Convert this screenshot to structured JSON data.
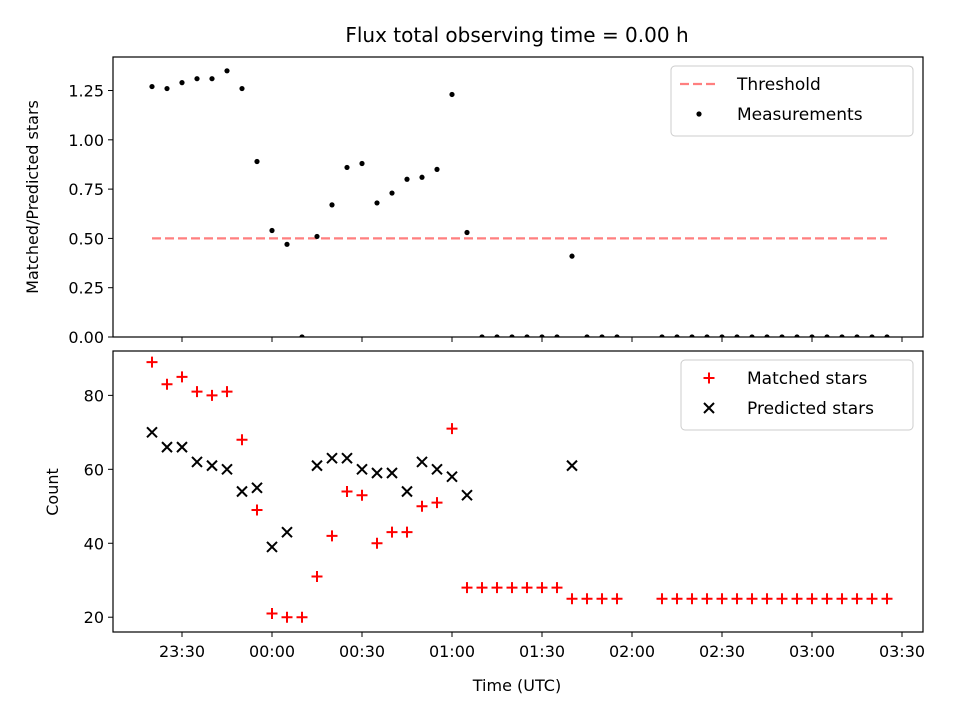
{
  "chart_data": [
    {
      "type": "scatter",
      "title": "Flux total observing time = 0.00 h",
      "xlabel": "",
      "ylabel": "Matched/Predicted stars",
      "xlim": [
        "23:07",
        "03:37"
      ],
      "ylim": [
        0,
        1.42
      ],
      "yticks": [
        0.0,
        0.25,
        0.5,
        0.75,
        1.0,
        1.25
      ],
      "ytick_labels": [
        "0.00",
        "0.25",
        "0.50",
        "0.75",
        "1.00",
        "1.25"
      ],
      "legend_position": "upper right",
      "series": [
        {
          "name": "Threshold",
          "kind": "line",
          "style": "dashed",
          "color": "#ff7f7f",
          "x": [
            "23:20",
            "03:25"
          ],
          "y": [
            0.5,
            0.5
          ]
        },
        {
          "name": "Measurements",
          "kind": "points",
          "marker": "dot",
          "color": "#000000",
          "x": [
            "23:20",
            "23:25",
            "23:30",
            "23:35",
            "23:40",
            "23:45",
            "23:50",
            "23:55",
            "00:00",
            "00:05",
            "00:10",
            "00:15",
            "00:20",
            "00:25",
            "00:30",
            "00:35",
            "00:40",
            "00:45",
            "00:50",
            "00:55",
            "01:00",
            "01:05",
            "01:10",
            "01:15",
            "01:20",
            "01:25",
            "01:30",
            "01:35",
            "01:40",
            "01:45",
            "01:50",
            "01:55",
            "02:10",
            "02:15",
            "02:20",
            "02:25",
            "02:30",
            "02:35",
            "02:40",
            "02:45",
            "02:50",
            "02:55",
            "03:00",
            "03:05",
            "03:10",
            "03:15",
            "03:20",
            "03:25"
          ],
          "y": [
            1.27,
            1.26,
            1.29,
            1.31,
            1.31,
            1.35,
            1.26,
            0.89,
            0.54,
            0.47,
            0.0,
            0.51,
            0.67,
            0.86,
            0.88,
            0.68,
            0.73,
            0.8,
            0.81,
            0.85,
            1.23,
            0.53,
            0.0,
            0.0,
            0.0,
            0.0,
            0.0,
            0.0,
            0.41,
            0.0,
            0.0,
            0.0,
            0.0,
            0.0,
            0.0,
            0.0,
            0.0,
            0.0,
            0.0,
            0.0,
            0.0,
            0.0,
            0.0,
            0.0,
            0.0,
            0.0,
            0.0,
            0.0
          ]
        }
      ]
    },
    {
      "type": "scatter",
      "title": "",
      "xlabel": "Time (UTC)",
      "ylabel": "Count",
      "xlim": [
        "23:07",
        "03:37"
      ],
      "ylim": [
        16,
        92
      ],
      "yticks": [
        20,
        40,
        60,
        80
      ],
      "ytick_labels": [
        "20",
        "40",
        "60",
        "80"
      ],
      "xticks": [
        "23:30",
        "00:00",
        "00:30",
        "01:00",
        "01:30",
        "02:00",
        "02:30",
        "03:00",
        "03:30"
      ],
      "legend_position": "upper right",
      "series": [
        {
          "name": "Matched stars",
          "kind": "points",
          "marker": "plus",
          "color": "#ff0000",
          "x": [
            "23:20",
            "23:25",
            "23:30",
            "23:35",
            "23:40",
            "23:45",
            "23:50",
            "23:55",
            "00:00",
            "00:05",
            "00:10",
            "00:15",
            "00:20",
            "00:25",
            "00:30",
            "00:35",
            "00:40",
            "00:45",
            "00:50",
            "00:55",
            "01:00",
            "01:05",
            "01:10",
            "01:15",
            "01:20",
            "01:25",
            "01:30",
            "01:35",
            "01:40",
            "01:45",
            "01:50",
            "01:55",
            "02:10",
            "02:15",
            "02:20",
            "02:25",
            "02:30",
            "02:35",
            "02:40",
            "02:45",
            "02:50",
            "02:55",
            "03:00",
            "03:05",
            "03:10",
            "03:15",
            "03:20",
            "03:25"
          ],
          "y": [
            89,
            83,
            85,
            81,
            80,
            81,
            68,
            49,
            21,
            20,
            20,
            31,
            42,
            54,
            53,
            40,
            43,
            43,
            50,
            51,
            71,
            28,
            28,
            28,
            28,
            28,
            28,
            28,
            25,
            25,
            25,
            25,
            25,
            25,
            25,
            25,
            25,
            25,
            25,
            25,
            25,
            25,
            25,
            25,
            25,
            25,
            25,
            25
          ]
        },
        {
          "name": "Predicted stars",
          "kind": "points",
          "marker": "x",
          "color": "#000000",
          "x": [
            "23:20",
            "23:25",
            "23:30",
            "23:35",
            "23:40",
            "23:45",
            "23:50",
            "23:55",
            "00:00",
            "00:05",
            "00:15",
            "00:20",
            "00:25",
            "00:30",
            "00:35",
            "00:40",
            "00:45",
            "00:50",
            "00:55",
            "01:00",
            "01:05",
            "01:40"
          ],
          "y": [
            70,
            66,
            66,
            62,
            61,
            60,
            54,
            55,
            39,
            43,
            61,
            63,
            63,
            60,
            59,
            59,
            54,
            62,
            60,
            58,
            53,
            61
          ]
        }
      ]
    }
  ]
}
